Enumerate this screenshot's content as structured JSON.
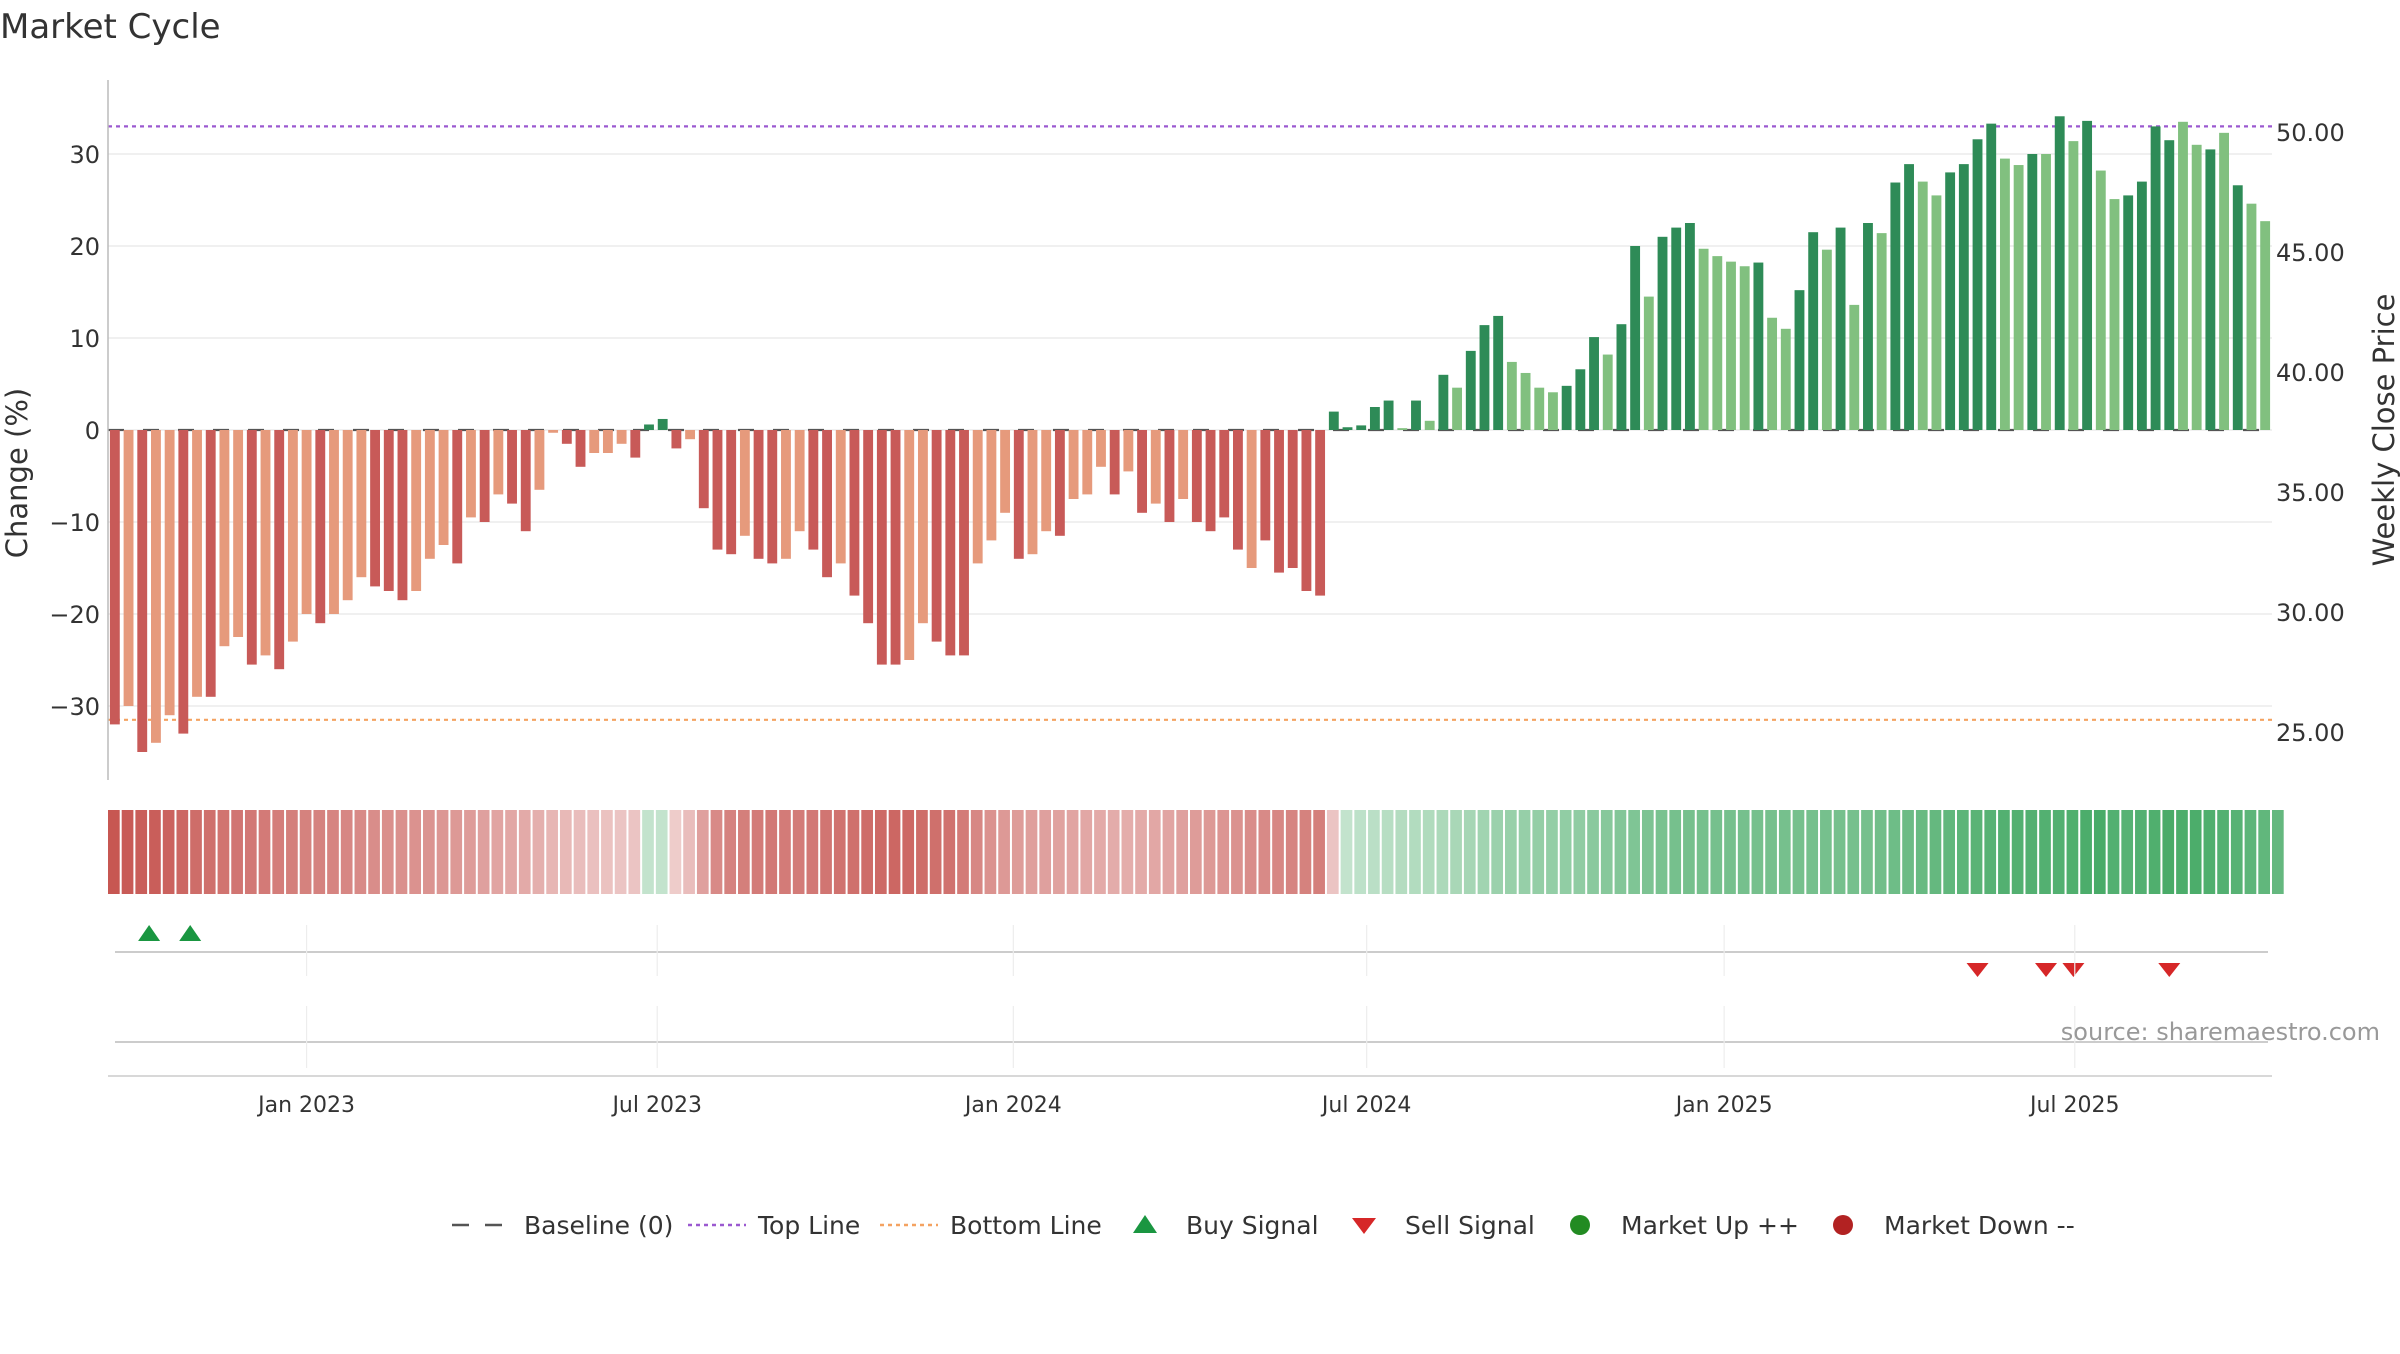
{
  "title": "Market Cycle",
  "source": "source: sharemaestro.com",
  "chart_data": {
    "type": "bar",
    "y_left_label": "Change (%)",
    "y_right_label": "Weekly Close Price",
    "ylim": [
      -38,
      38
    ],
    "y_ticks": [
      30,
      20,
      10,
      0,
      -10,
      -20,
      -30
    ],
    "y_tick_labels": [
      "30",
      "20",
      "10",
      "0",
      "−10",
      "−20",
      "−30"
    ],
    "y2lim": [
      22.7,
      53.3
    ],
    "y2_ticks": [
      50,
      45,
      40,
      35,
      30,
      25
    ],
    "y2_tick_labels": [
      "50.00",
      "45.00",
      "40.00",
      "35.00",
      "30.00",
      "25.00"
    ],
    "x_tick_labels": [
      "Jan 2023",
      "Jul 2023",
      "Jan 2024",
      "Jul 2024",
      "Jan 2025",
      "Jul 2025"
    ],
    "x_tick_positions": [
      14.5,
      40.1,
      66.1,
      91.9,
      118.0,
      143.6
    ],
    "top_line": 33,
    "bottom_line": -31.5,
    "grid": true,
    "legend_position": "bottom-center",
    "colors": {
      "neg_dark": "#c85a58",
      "neg_light": "#e69a7c",
      "pos_dark": "#2e8b57",
      "pos_light": "#81c07f",
      "top_line": "#9b59d0",
      "bottom_line": "#f4a261",
      "buy": "#1a9641",
      "sell": "#d62728",
      "market_up": "#228b22",
      "market_down": "#b22222"
    },
    "series": [
      {
        "name": "Change",
        "values": [
          -32,
          -30,
          -35,
          -34,
          -31,
          -33,
          -29,
          -29,
          -23.5,
          -22.5,
          -25.5,
          -24.5,
          -26,
          -23,
          -20,
          -21,
          -20,
          -18.5,
          -16,
          -17,
          -17.5,
          -18.5,
          -17.5,
          -14,
          -12.5,
          -14.5,
          -9.5,
          -10,
          -7,
          -8,
          -11,
          -6.5,
          -0.3,
          -1.5,
          -4,
          -2.5,
          -2.5,
          -1.5,
          -3,
          0.6,
          1.2,
          -2,
          -1,
          -8.5,
          -13,
          -13.5,
          -11.5,
          -14,
          -14.5,
          -14,
          -11,
          -13,
          -16,
          -14.5,
          -18,
          -21,
          -25.5,
          -25.5,
          -25,
          -21,
          -23,
          -24.5,
          -24.5,
          -14.5,
          -12,
          -9,
          -14,
          -13.5,
          -11,
          -11.5,
          -7.5,
          -7,
          -4,
          -7,
          -4.5,
          -9,
          -8,
          -10,
          -7.5,
          -10,
          -11,
          -9.5,
          -13,
          -15,
          -12,
          -15.5,
          -15,
          -17.5,
          -18,
          2,
          0.3,
          0.5,
          2.5,
          3.2,
          0.2,
          3.2,
          1,
          6,
          4.6,
          8.6,
          11.4,
          12.4,
          7.4,
          6.2,
          4.6,
          4.1,
          4.8,
          6.6,
          10.1,
          8.2,
          11.5,
          20,
          14.5,
          21,
          22,
          22.5,
          19.7,
          18.9,
          18.3,
          17.8,
          18.2,
          12.2,
          11,
          15.2,
          21.5,
          19.6,
          22,
          13.6,
          22.5,
          21.4,
          26.9,
          28.9,
          27,
          25.5,
          28,
          28.9,
          31.6,
          33.3,
          29.5,
          28.8,
          30,
          30,
          34.1,
          31.4,
          33.6,
          28.2,
          25.1,
          25.5,
          27,
          33,
          31.5,
          33.5,
          31,
          30.5,
          32.3,
          26.6,
          24.6,
          22.7
        ],
        "shade": [
          1,
          0,
          1,
          0,
          0,
          1,
          0,
          1,
          0,
          0,
          1,
          0,
          1,
          0,
          0,
          1,
          0,
          0,
          0,
          1,
          1,
          1,
          0,
          0,
          0,
          1,
          0,
          1,
          0,
          1,
          1,
          0,
          0,
          1,
          1,
          0,
          0,
          0,
          1,
          1,
          1,
          1,
          0,
          1,
          1,
          1,
          0,
          1,
          1,
          0,
          0,
          1,
          1,
          0,
          1,
          1,
          1,
          1,
          0,
          0,
          1,
          1,
          1,
          0,
          0,
          0,
          1,
          0,
          0,
          1,
          0,
          0,
          0,
          1,
          0,
          1,
          0,
          1,
          0,
          1,
          1,
          1,
          1,
          0,
          1,
          1,
          1,
          1,
          1,
          1,
          1,
          1,
          1,
          1,
          0,
          1,
          0,
          1,
          0,
          1,
          1,
          1,
          0,
          0,
          0,
          0,
          1,
          1,
          1,
          0,
          1,
          1,
          0,
          1,
          1,
          1,
          0,
          0,
          0,
          0,
          1,
          0,
          0,
          1,
          1,
          0,
          1,
          0,
          1,
          0,
          1,
          1,
          0,
          0,
          1,
          1,
          1,
          1,
          0,
          0,
          1,
          0,
          1,
          0,
          1,
          0,
          0,
          1,
          1,
          1,
          1,
          0,
          0,
          1,
          0,
          1,
          0,
          0
        ]
      }
    ],
    "heat_strip": [
      -0.95,
      -0.92,
      -0.9,
      -0.9,
      -0.87,
      -0.84,
      -0.8,
      -0.78,
      -0.75,
      -0.74,
      -0.72,
      -0.71,
      -0.69,
      -0.68,
      -0.66,
      -0.65,
      -0.64,
      -0.62,
      -0.6,
      -0.58,
      -0.57,
      -0.56,
      -0.55,
      -0.53,
      -0.51,
      -0.5,
      -0.48,
      -0.45,
      -0.42,
      -0.4,
      -0.38,
      -0.35,
      -0.3,
      -0.28,
      -0.25,
      -0.23,
      -0.22,
      -0.2,
      -0.2,
      0.15,
      0.15,
      -0.15,
      -0.25,
      -0.45,
      -0.6,
      -0.65,
      -0.68,
      -0.7,
      -0.72,
      -0.7,
      -0.7,
      -0.72,
      -0.74,
      -0.76,
      -0.78,
      -0.8,
      -0.82,
      -0.84,
      -0.83,
      -0.8,
      -0.78,
      -0.76,
      -0.7,
      -0.62,
      -0.55,
      -0.5,
      -0.48,
      -0.46,
      -0.45,
      -0.44,
      -0.42,
      -0.4,
      -0.38,
      -0.37,
      -0.36,
      -0.38,
      -0.4,
      -0.42,
      -0.45,
      -0.48,
      -0.5,
      -0.52,
      -0.55,
      -0.58,
      -0.6,
      -0.62,
      -0.64,
      -0.66,
      -0.68,
      -0.2,
      0.15,
      0.18,
      0.2,
      0.22,
      0.24,
      0.25,
      0.26,
      0.28,
      0.3,
      0.32,
      0.35,
      0.38,
      0.4,
      0.41,
      0.42,
      0.43,
      0.44,
      0.45,
      0.48,
      0.5,
      0.52,
      0.54,
      0.56,
      0.58,
      0.6,
      0.6,
      0.6,
      0.6,
      0.6,
      0.6,
      0.6,
      0.6,
      0.6,
      0.6,
      0.6,
      0.6,
      0.6,
      0.6,
      0.6,
      0.62,
      0.64,
      0.66,
      0.68,
      0.7,
      0.72,
      0.74,
      0.76,
      0.78,
      0.8,
      0.8,
      0.8,
      0.8,
      0.8,
      0.82,
      0.84,
      0.86,
      0.8,
      0.78,
      0.8,
      0.82,
      0.86,
      0.84,
      0.84,
      0.82,
      0.8,
      0.78,
      0.74,
      0.72,
      0.7
    ],
    "buy_signals": [
      2.5,
      5.5
    ],
    "sell_signals": [
      136,
      141,
      143,
      150
    ]
  },
  "legend": [
    {
      "key": "baseline",
      "label": "Baseline (0)"
    },
    {
      "key": "top",
      "label": "Top Line"
    },
    {
      "key": "bottom",
      "label": "Bottom Line"
    },
    {
      "key": "buy",
      "label": "Buy Signal"
    },
    {
      "key": "sell",
      "label": "Sell Signal"
    },
    {
      "key": "up",
      "label": "Market Up ++"
    },
    {
      "key": "down",
      "label": "Market Down --"
    }
  ]
}
